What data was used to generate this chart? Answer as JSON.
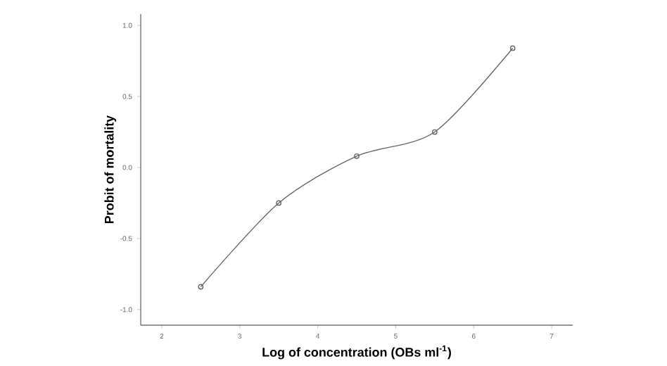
{
  "chart_data": {
    "type": "line",
    "xlabel": "Log of concentration (OBs ml$^{-1}$)",
    "ylabel": "Probit of mortality",
    "x": [
      2.5,
      3.5,
      4.5,
      5.5,
      6.5
    ],
    "series": [
      {
        "color": "#666666",
        "values": [
          -0.84,
          -0.25,
          0.08,
          0.25,
          0.84
        ]
      }
    ],
    "xlim": [
      1.73,
      7.27
    ],
    "ylim": [
      -1.11,
      1.08
    ],
    "xticks": [
      2,
      3,
      4,
      5,
      6,
      7
    ],
    "yticks": [
      {
        "value": -1.0,
        "label": "-1.0"
      },
      {
        "value": -0.5,
        "label": "-0.5"
      },
      {
        "value": 0.0,
        "label": "0.0"
      },
      {
        "value": 0.5,
        "label": "0.5"
      },
      {
        "value": 1.0,
        "label": "1.0"
      }
    ],
    "marker": "circle",
    "line_style": "solid"
  }
}
